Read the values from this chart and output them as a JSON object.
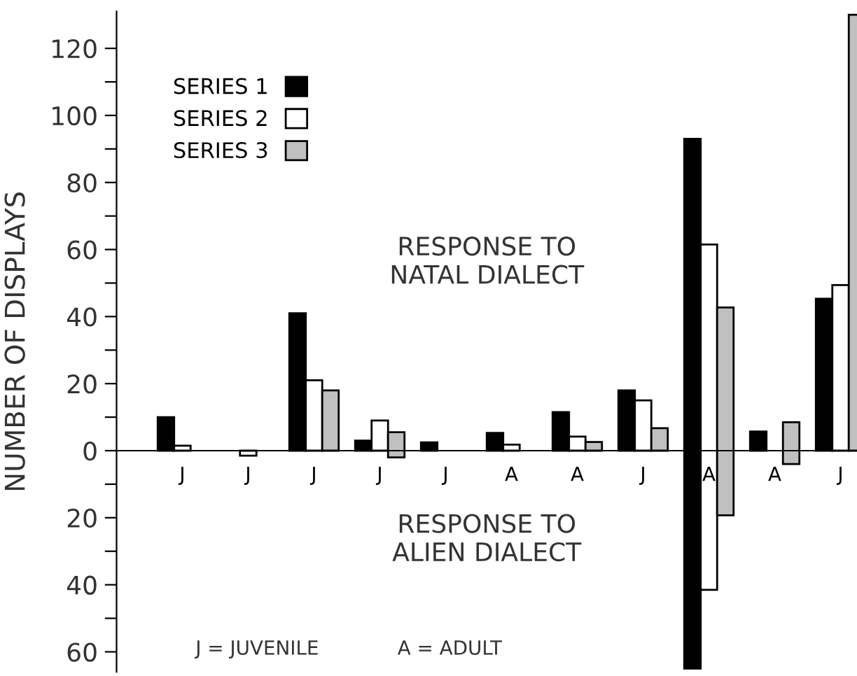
{
  "chart_data": {
    "type": "bar",
    "ylabel": "NUMBER OF DISPLAYS",
    "categories": [
      "J",
      "J",
      "J",
      "J",
      "J",
      "A",
      "A",
      "J",
      "A",
      "A",
      "J"
    ],
    "series": [
      {
        "name": "SERIES 1",
        "color": "#000000",
        "values": [
          10,
          null,
          41,
          3,
          2.5,
          5.3,
          11.5,
          18,
          158,
          5.7,
          45.3
        ],
        "base": [
          0,
          null,
          0,
          0,
          0,
          0,
          0,
          0,
          -65,
          0,
          0
        ]
      },
      {
        "name": "SERIES 2",
        "color": "#ffffff",
        "values": [
          1.5,
          1.5,
          21,
          9,
          null,
          1.8,
          4.2,
          15,
          103,
          null,
          49.4
        ],
        "base": [
          0,
          -1.5,
          0,
          0,
          null,
          0,
          0,
          0,
          -41.5,
          null,
          0
        ]
      },
      {
        "name": "SERIES 3",
        "color": "#c0c0c0",
        "values": [
          null,
          null,
          18,
          7.5,
          null,
          null,
          2.6,
          6.7,
          62,
          12.5,
          130
        ],
        "base": [
          null,
          null,
          0,
          -2,
          null,
          null,
          0,
          0,
          -19.3,
          -4,
          0
        ]
      }
    ],
    "ylim": [
      -66,
      131
    ],
    "yticks": [
      {
        "value": -60,
        "label": "60"
      },
      {
        "value": -50,
        "label": null
      },
      {
        "value": -40,
        "label": "40"
      },
      {
        "value": -30,
        "label": null
      },
      {
        "value": -20,
        "label": "20"
      },
      {
        "value": -10,
        "label": null
      },
      0,
      {
        "value": 10,
        "label": null
      },
      20,
      {
        "value": 30,
        "label": null
      },
      40,
      {
        "value": 50,
        "label": null
      },
      60,
      {
        "value": 70,
        "label": null
      },
      80,
      {
        "value": 90,
        "label": null
      },
      100,
      {
        "value": 110,
        "label": null
      },
      120
    ],
    "legend": "top left",
    "grid": false,
    "annotations": [
      "RESPONSE TO\nNATAL DIALECT",
      "RESPONSE TO\nALIEN DIALECT",
      "J = JUVENILE",
      "A = ADULT"
    ]
  }
}
